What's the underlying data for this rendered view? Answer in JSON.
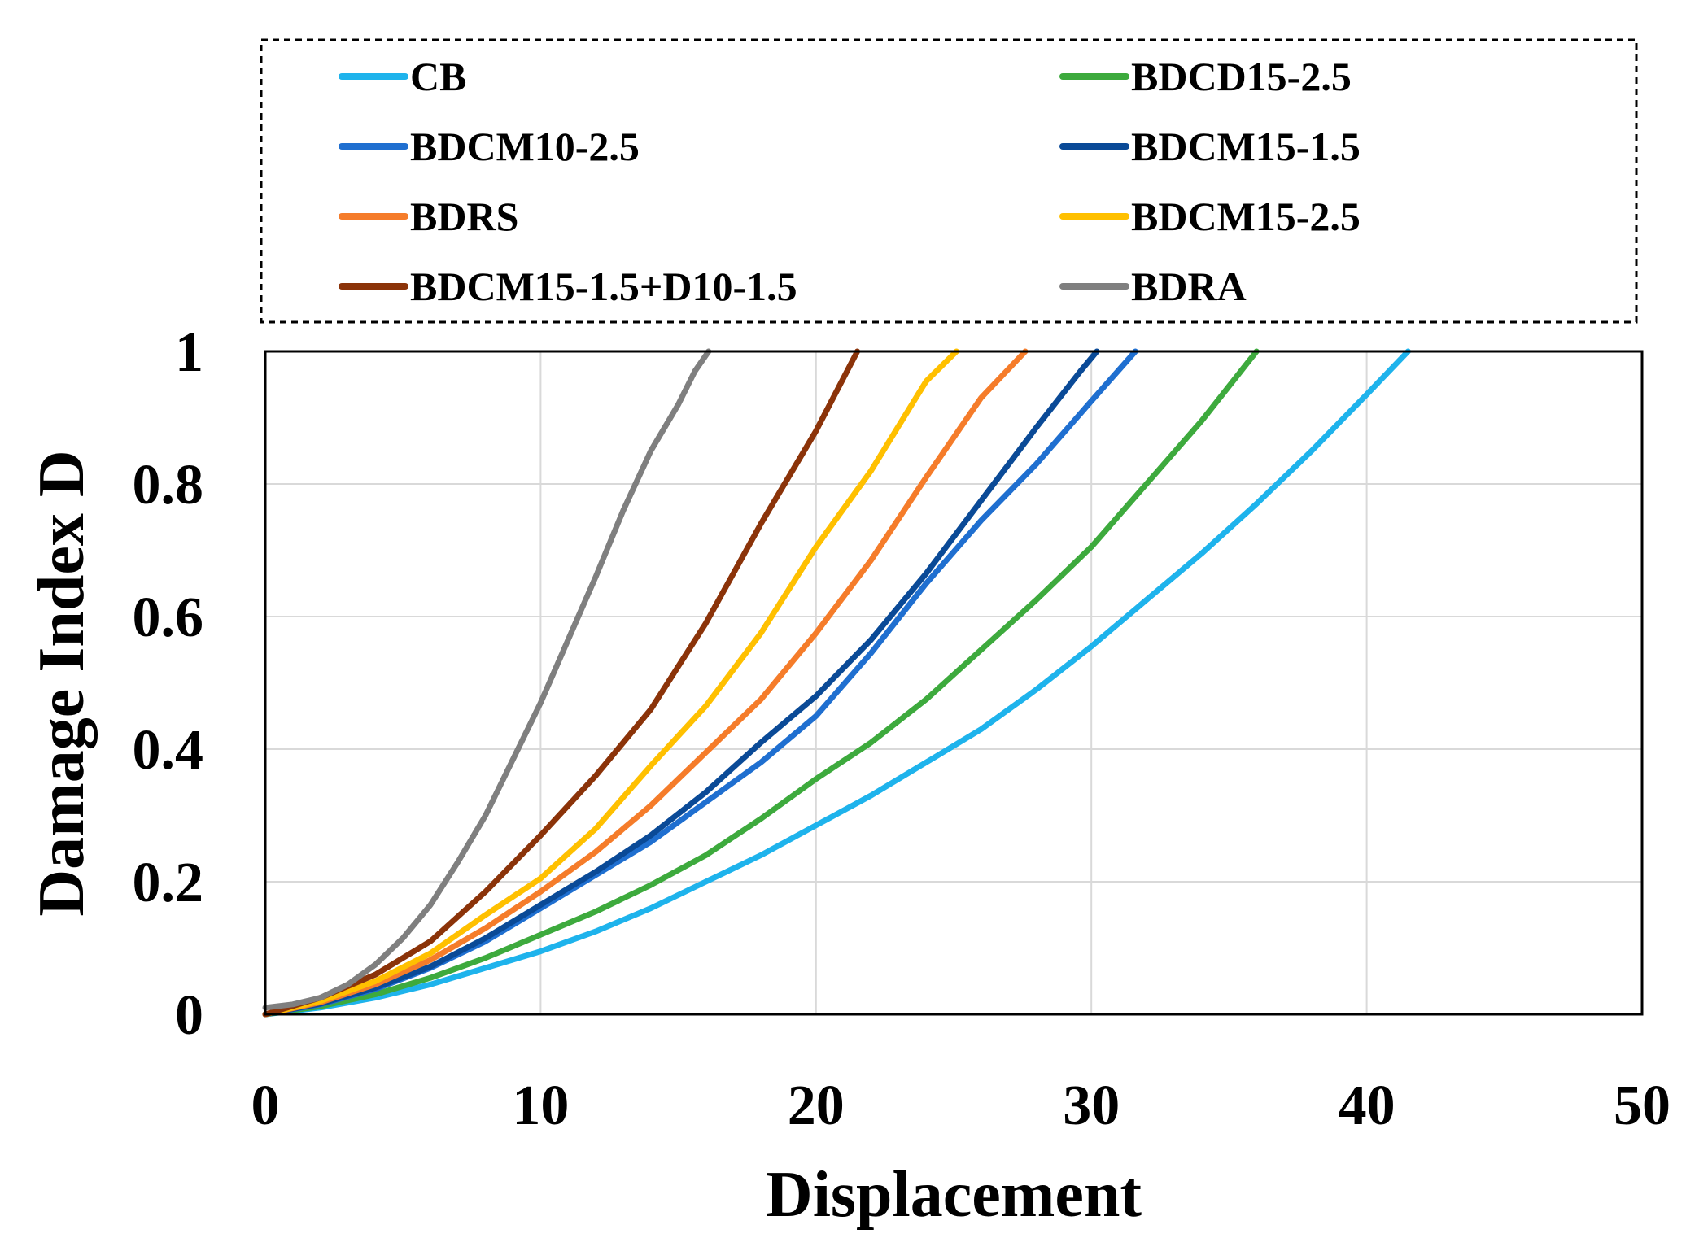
{
  "chart_data": {
    "type": "line",
    "title": "",
    "xlabel": "Displacement",
    "ylabel": "Damage Index D",
    "xlim": [
      0,
      50
    ],
    "ylim": [
      0,
      1
    ],
    "xticks": [
      0,
      10,
      20,
      30,
      40,
      50
    ],
    "yticks": [
      0,
      0.2,
      0.4,
      0.6,
      0.8,
      1
    ],
    "xtick_labels": [
      "0",
      "10",
      "20",
      "30",
      "40",
      "50"
    ],
    "ytick_labels": [
      "0",
      "0.2",
      "0.4",
      "0.6",
      "0.8",
      "1"
    ],
    "grid": true,
    "legend_position": "top",
    "series": [
      {
        "name": "CB",
        "color": "#1eb3ec",
        "x": [
          0,
          2,
          4,
          6,
          8,
          10,
          12,
          14,
          16,
          18,
          20,
          22,
          24,
          26,
          28,
          30,
          32,
          34,
          36,
          38,
          40,
          41.5
        ],
        "y": [
          0,
          0.01,
          0.025,
          0.045,
          0.07,
          0.095,
          0.125,
          0.16,
          0.2,
          0.24,
          0.285,
          0.33,
          0.38,
          0.43,
          0.49,
          0.555,
          0.625,
          0.695,
          0.77,
          0.85,
          0.935,
          1
        ]
      },
      {
        "name": "BDCD15-2.5",
        "color": "#3daa3d",
        "x": [
          0,
          2,
          4,
          6,
          8,
          10,
          12,
          14,
          16,
          18,
          20,
          22,
          24,
          26,
          28,
          30,
          32,
          34,
          36
        ],
        "y": [
          0,
          0.012,
          0.03,
          0.055,
          0.085,
          0.12,
          0.155,
          0.195,
          0.24,
          0.295,
          0.355,
          0.41,
          0.475,
          0.55,
          0.625,
          0.705,
          0.8,
          0.895,
          1
        ]
      },
      {
        "name": "BDCM10-2.5",
        "color": "#1f6fd0",
        "x": [
          0,
          2,
          4,
          6,
          8,
          10,
          12,
          14,
          16,
          18,
          20,
          22,
          24,
          26,
          28,
          30,
          31.6
        ],
        "y": [
          0,
          0.015,
          0.038,
          0.07,
          0.11,
          0.16,
          0.21,
          0.26,
          0.32,
          0.38,
          0.45,
          0.545,
          0.65,
          0.745,
          0.83,
          0.925,
          1
        ]
      },
      {
        "name": "BDCM15-1.5",
        "color": "#0a4a97",
        "x": [
          0,
          2,
          4,
          6,
          8,
          10,
          12,
          14,
          16,
          18,
          20,
          22,
          24,
          26,
          28,
          29.6,
          30.2
        ],
        "y": [
          0,
          0.016,
          0.04,
          0.072,
          0.115,
          0.165,
          0.215,
          0.27,
          0.335,
          0.41,
          0.48,
          0.565,
          0.665,
          0.775,
          0.885,
          0.97,
          1
        ]
      },
      {
        "name": "BDRS",
        "color": "#f57c2a",
        "x": [
          0,
          2,
          4,
          6,
          8,
          10,
          12,
          14,
          16,
          18,
          20,
          22,
          24,
          26,
          27.6
        ],
        "y": [
          0,
          0.018,
          0.045,
          0.082,
          0.13,
          0.185,
          0.245,
          0.315,
          0.395,
          0.475,
          0.575,
          0.685,
          0.81,
          0.93,
          1
        ]
      },
      {
        "name": "BDCM15-2.5",
        "color": "#ffc000",
        "x": [
          0,
          2,
          4,
          6,
          8,
          10,
          12,
          14,
          16,
          18,
          20,
          22,
          24,
          25.1
        ],
        "y": [
          0,
          0.02,
          0.05,
          0.092,
          0.15,
          0.205,
          0.28,
          0.375,
          0.465,
          0.575,
          0.705,
          0.82,
          0.955,
          1
        ]
      },
      {
        "name": "BDCM15-1.5+D10-1.5",
        "color": "#8b3309",
        "x": [
          0,
          2,
          4,
          6,
          8,
          10,
          12,
          14,
          16,
          18,
          20,
          21.5
        ],
        "y": [
          0,
          0.025,
          0.06,
          0.11,
          0.185,
          0.27,
          0.36,
          0.46,
          0.59,
          0.74,
          0.88,
          1
        ]
      },
      {
        "name": "BDRA",
        "color": "#7f7f7f",
        "x": [
          0,
          1,
          2,
          3,
          4,
          5,
          6,
          7,
          8,
          9,
          10,
          11,
          12,
          13,
          14,
          15,
          15.6,
          16.1
        ],
        "y": [
          0.01,
          0.015,
          0.025,
          0.045,
          0.075,
          0.115,
          0.165,
          0.23,
          0.3,
          0.385,
          0.47,
          0.565,
          0.66,
          0.76,
          0.85,
          0.92,
          0.97,
          1
        ]
      }
    ]
  }
}
